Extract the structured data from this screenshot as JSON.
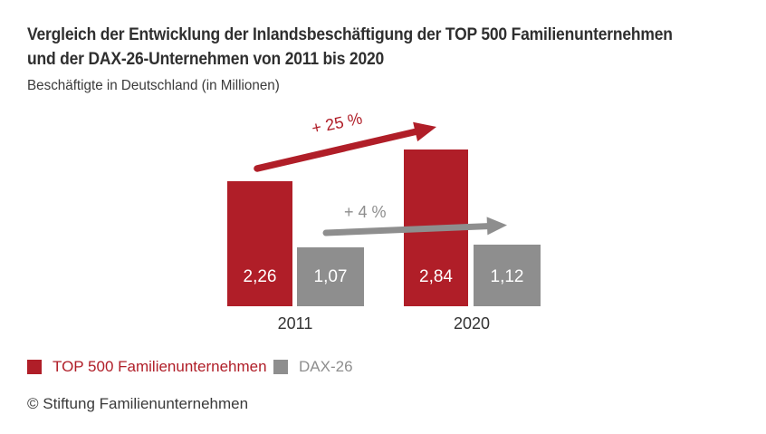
{
  "header": {
    "title_line1": "Vergleich der Entwicklung der Inlandsbeschäftigung der TOP 500 Familienunternehmen",
    "title_line2": "und der DAX-26-Unternehmen von 2011 bis 2020",
    "subtitle": "Beschäftigte in Deutschland (in Millionen)"
  },
  "chart_data": {
    "type": "bar",
    "title": "Vergleich der Entwicklung der Inlandsbeschäftigung der TOP 500 Familienunternehmen und der DAX-26-Unternehmen von 2011 bis 2020",
    "subtitle": "Beschäftigte in Deutschland (in Millionen)",
    "categories": [
      "2011",
      "2020"
    ],
    "series": [
      {
        "name": "TOP 500 Familienunternehmen",
        "color": "#b01e28",
        "values": [
          2.26,
          2.84
        ],
        "value_labels": [
          "2,26",
          "2,84"
        ],
        "change_label": "+ 25 %"
      },
      {
        "name": "DAX-26",
        "color": "#8e8e8e",
        "values": [
          1.07,
          1.12
        ],
        "value_labels": [
          "1,07",
          "1,12"
        ],
        "change_label": "+ 4 %"
      }
    ],
    "ylim": [
      0,
      3
    ],
    "grid": false,
    "axes_visible": false,
    "value_label_position": "inside-bottom",
    "legend_position": "bottom-left"
  },
  "legend": {
    "items": [
      {
        "label": "TOP 500 Familienunternehmen",
        "color": "#b01e28"
      },
      {
        "label": "DAX-26",
        "color": "#8e8e8e"
      }
    ]
  },
  "footer": {
    "copyright": "© Stiftung Familienunternehmen"
  },
  "colors": {
    "brand_red": "#b01e28",
    "brand_gray": "#8e8e8e",
    "title_text": "#2f2f2f",
    "body_text": "#3a3a3a",
    "bar_value_text": "#ffffff",
    "background": "#ffffff"
  }
}
